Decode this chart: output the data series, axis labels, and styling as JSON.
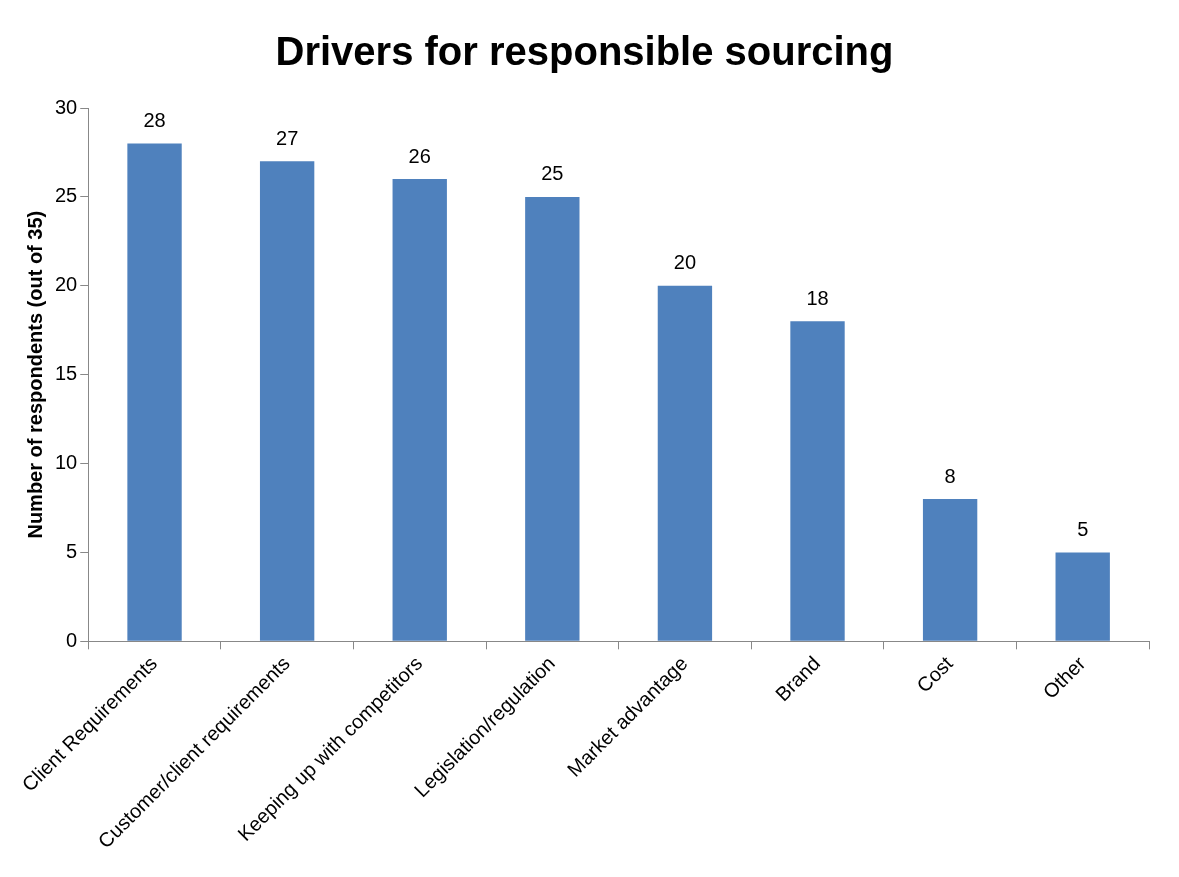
{
  "chart_data": {
    "type": "bar",
    "title": "Drivers for responsible sourcing",
    "ylabel": "Number of respondents (out of 35)",
    "categories": [
      "Client Requirements",
      "Customer/client requirements",
      "Keeping up with competitors",
      "Legislation/regulation",
      "Market advantage",
      "Brand",
      "Cost",
      "Other"
    ],
    "values": [
      28,
      27,
      26,
      25,
      20,
      18,
      8,
      5
    ],
    "color": "#4f81bd",
    "ylim": [
      0,
      30
    ],
    "yticks": [
      0,
      5,
      10,
      15,
      20,
      25,
      30
    ],
    "grid": false,
    "legend": false,
    "data_labels": true
  }
}
